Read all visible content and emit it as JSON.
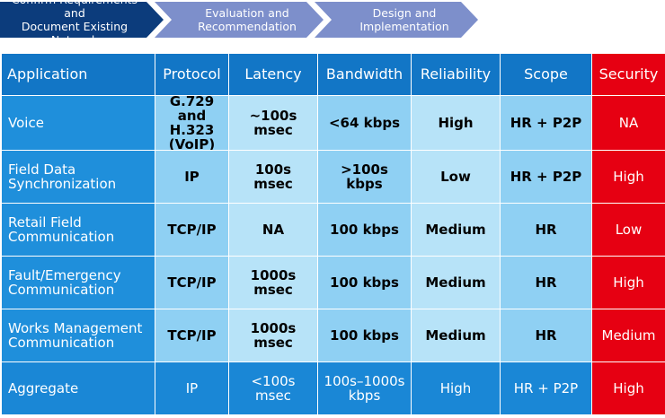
{
  "process": [
    "Confirm Requirements and\nDocument Existing Network",
    "Evaluation and\nRecommendation",
    "Design and\nImplementation"
  ],
  "table": {
    "headers": [
      "Application",
      "Protocol",
      "Latency",
      "Bandwidth",
      "Reliability",
      "Scope",
      "Security"
    ],
    "rows": [
      [
        "Voice",
        "G.729 and\nH.323\n(VoIP)",
        "~100s\nmsec",
        "<64 kbps",
        "High",
        "HR + P2P",
        "NA"
      ],
      [
        "Field Data\nSynchronization",
        "IP",
        "100s\nmsec",
        ">100s\nkbps",
        "Low",
        "HR + P2P",
        "High"
      ],
      [
        "Retail Field\nCommunication",
        "TCP/IP",
        "NA",
        "100 kbps",
        "Medium",
        "HR",
        "Low"
      ],
      [
        "Fault/Emergency\nCommunication",
        "TCP/IP",
        "1000s\nmsec",
        "100 kbps",
        "Medium",
        "HR",
        "High"
      ],
      [
        "Works Management\nCommunication",
        "TCP/IP",
        "1000s\nmsec",
        "100 kbps",
        "Medium",
        "HR",
        "Medium"
      ],
      [
        "Aggregate",
        "IP",
        "<100s\nmsec",
        "100s–1000s\nkbps",
        "High",
        "HR + P2P",
        "High"
      ]
    ]
  }
}
